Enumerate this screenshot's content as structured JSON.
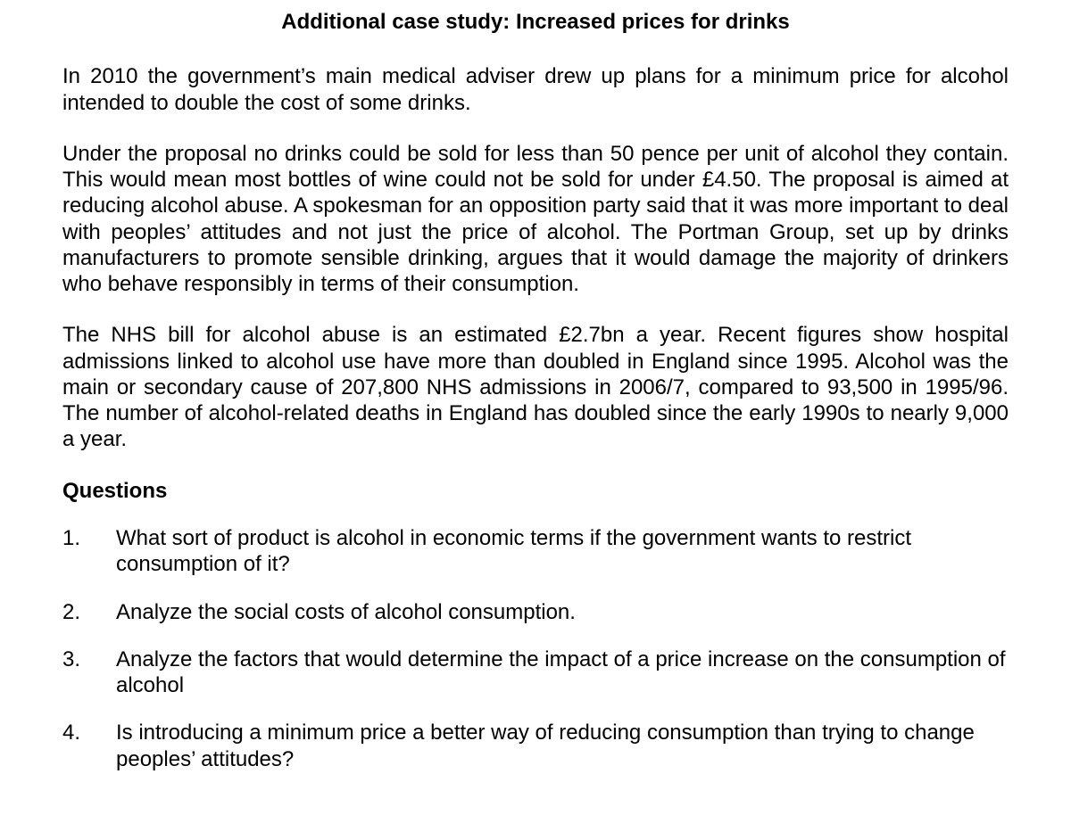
{
  "title": "Additional case study: Increased prices for drinks",
  "paragraphs": [
    "In 2010 the government’s main medical adviser drew up plans for a minimum price for alcohol intended to double the cost of some drinks.",
    "Under the proposal no drinks could be sold for less than 50 pence per unit of alcohol they contain. This would mean most bottles of wine could not be sold for under £4.50. The proposal is aimed at reducing alcohol abuse. A spokesman for an opposition party said that it was more important to deal with peoples’ attitudes and not just the price of alcohol. The Portman Group, set up by drinks manufacturers to promote sensible drinking, argues that it would damage the majority of drinkers who behave responsibly in terms of their consumption.",
    "The NHS bill for alcohol abuse is an estimated £2.7bn a year. Recent figures show hospital admissions linked to alcohol use have more than doubled in England since 1995. Alcohol was the main or secondary cause of 207,800 NHS admissions in 2006/7, compared to 93,500 in 1995/96. The number of alcohol-related deaths in England has doubled since the early 1990s to nearly 9,000 a year."
  ],
  "questions_heading": "Questions",
  "questions": [
    {
      "num": "1.",
      "text": "What sort of product is alcohol in economic terms if the government wants to restrict consumption of it?"
    },
    {
      "num": "2.",
      "text": "Analyze the social costs of alcohol consumption."
    },
    {
      "num": "3.",
      "text": "Analyze the factors that would determine the impact of a price increase on the consumption of alcohol"
    },
    {
      "num": "4.",
      "text": "Is introducing a minimum price a better way of reducing consumption than trying to change peoples’ attitudes?"
    }
  ]
}
